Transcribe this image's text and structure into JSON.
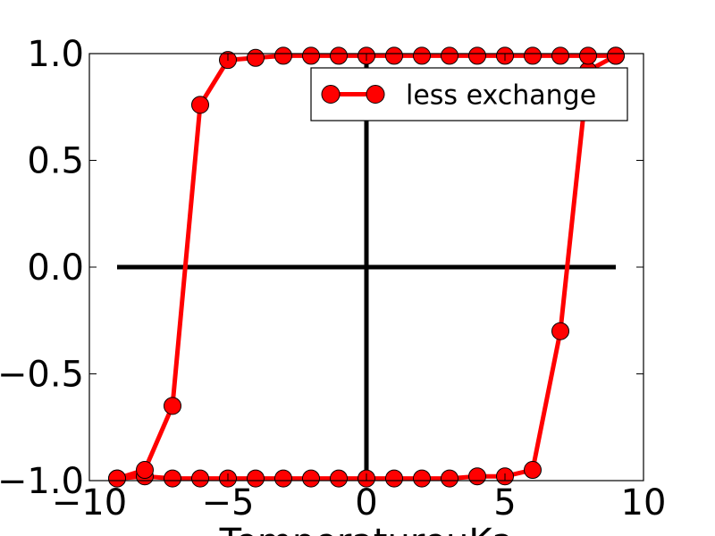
{
  "chart_data": {
    "type": "line",
    "xlabel": "TemperatureuKa",
    "xlim": [
      -10,
      10
    ],
    "ylim": [
      -1.0,
      1.0
    ],
    "x_ticks": [
      -10,
      -5,
      0,
      5,
      10
    ],
    "x_tick_labels": [
      "−10",
      "−5",
      "0",
      "5",
      "10"
    ],
    "y_ticks": [
      -1.0,
      -0.5,
      0.0,
      0.5,
      1.0
    ],
    "y_tick_labels": [
      "−1.0",
      "−0.5",
      "0.0",
      "0.5",
      "1.0"
    ],
    "legend_position": "top-right",
    "series": [
      {
        "name": "less exchange",
        "color": "#ff0000",
        "marker": "circle",
        "x": [
          -9,
          -8,
          -7,
          -6,
          -5,
          -4,
          -3,
          -2,
          -1,
          0,
          1,
          2,
          3,
          4,
          5,
          6,
          7,
          8,
          9,
          9,
          8,
          7,
          6,
          5,
          4,
          3,
          2,
          1,
          0,
          -1,
          -2,
          -3,
          -4,
          -5,
          -6,
          -7,
          -8,
          -9
        ],
        "y": [
          -0.99,
          -0.98,
          -0.99,
          -0.99,
          -0.99,
          -0.99,
          -0.99,
          -0.99,
          -0.99,
          -0.99,
          -0.99,
          -0.99,
          -0.99,
          -0.98,
          -0.98,
          -0.95,
          -0.3,
          0.92,
          0.99,
          0.99,
          0.99,
          0.99,
          0.99,
          0.99,
          0.99,
          0.99,
          0.99,
          0.99,
          0.99,
          0.99,
          0.99,
          0.99,
          0.98,
          0.97,
          0.76,
          -0.65,
          -0.95,
          -0.99
        ]
      }
    ],
    "reference_lines": {
      "horizontal": {
        "y": 0,
        "x_range": [
          -9,
          9
        ],
        "color": "#000000"
      },
      "vertical": {
        "x": 0,
        "color": "#000000"
      }
    }
  }
}
